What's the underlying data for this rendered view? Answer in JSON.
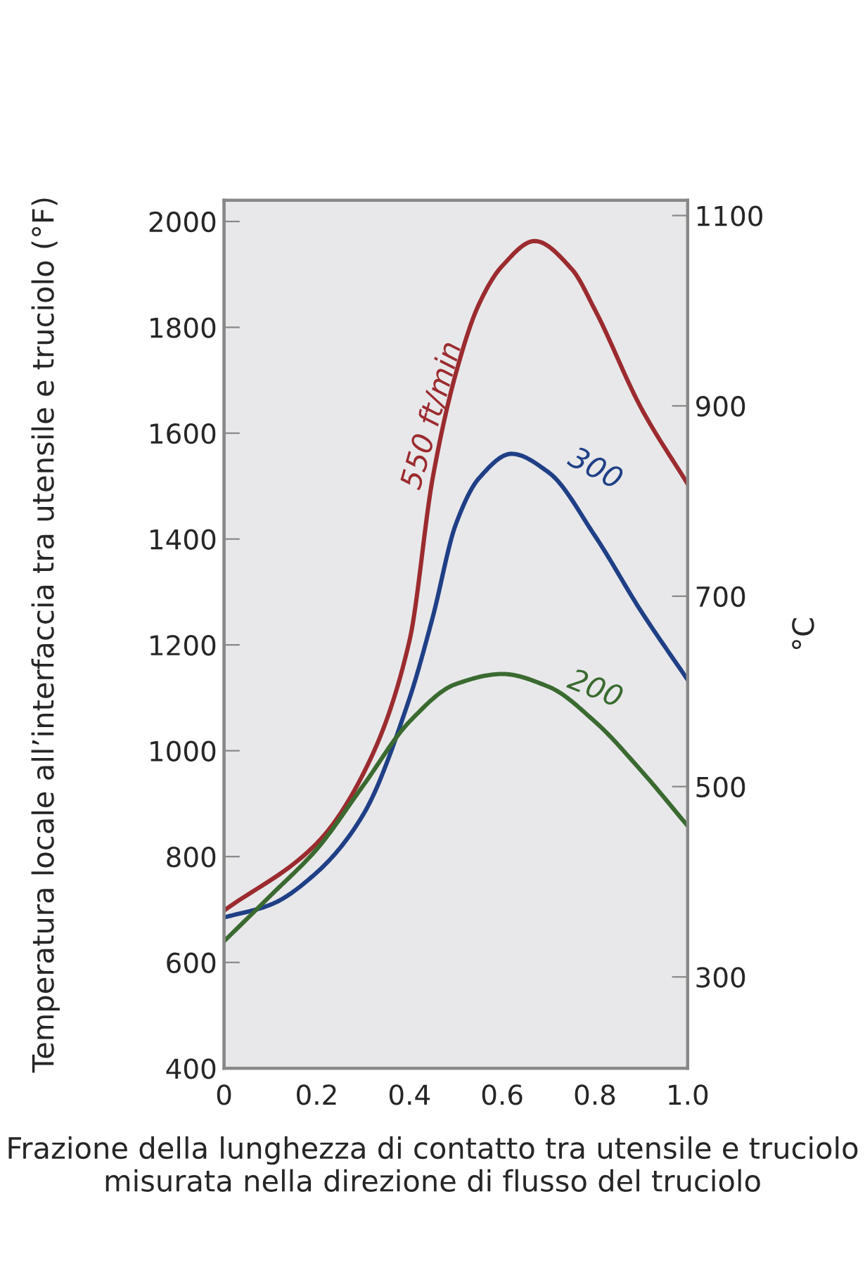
{
  "chart_data": {
    "type": "line",
    "xlabel": "Frazione della lunghezza di contatto tra utensile e truciolo misurata nella direzione di flusso del truciolo",
    "ylabel": "Temperatura locale all’interfaccia tra utensile e truciolo (°F)",
    "y2label": "°C",
    "xlim": [
      0,
      1.0
    ],
    "xticks": [
      {
        "value": 0,
        "label": "0"
      },
      0.2,
      0.4,
      0.6,
      0.8,
      {
        "value": 1.0,
        "label": "1.0"
      }
    ],
    "ylim": [
      400,
      2040
    ],
    "yticks": [
      400,
      600,
      800,
      1000,
      1200,
      1400,
      1600,
      1800,
      2000
    ],
    "y2lim": [
      204,
      1116
    ],
    "y2ticks": [
      300,
      500,
      700,
      900,
      1100
    ],
    "grid": false,
    "legend": false,
    "marker": "none",
    "line_style": "solid",
    "series": [
      {
        "name": "550 ft/min",
        "color": "#9b2b2f",
        "x": [
          0,
          0.2,
          0.3,
          0.4,
          0.45,
          0.5,
          0.55,
          0.6,
          0.67,
          0.75,
          0.8,
          0.9,
          1.0
        ],
        "values": [
          698,
          825,
          956,
          1208,
          1515,
          1713,
          1844,
          1916,
          1963,
          1910,
          1833,
          1647,
          1504
        ]
      },
      {
        "name": "300",
        "color": "#1f3f86",
        "x": [
          0,
          0.1,
          0.2,
          0.3,
          0.4,
          0.45,
          0.5,
          0.55,
          0.62,
          0.7,
          0.8,
          0.9,
          1.0
        ],
        "values": [
          685,
          709,
          770,
          879,
          1099,
          1252,
          1428,
          1515,
          1561,
          1526,
          1406,
          1263,
          1134
        ]
      },
      {
        "name": "200",
        "color": "#3a6a30",
        "x": [
          0,
          0.1,
          0.2,
          0.3,
          0.4,
          0.5,
          0.6,
          0.7,
          0.8,
          0.9,
          1.0
        ],
        "values": [
          640,
          726,
          814,
          934,
          1055,
          1126,
          1145,
          1121,
          1055,
          962,
          858
        ]
      }
    ]
  }
}
